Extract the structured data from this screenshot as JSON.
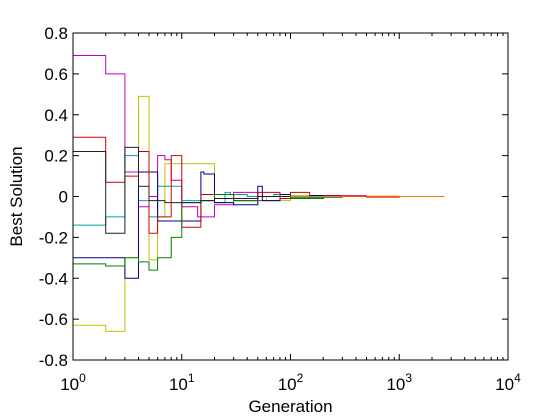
{
  "chart_data": {
    "type": "line",
    "xlabel": "Generation",
    "ylabel": "Best Solution",
    "xscale": "log",
    "xlim": [
      1,
      10000
    ],
    "ylim": [
      -0.8,
      0.8
    ],
    "grid": false,
    "legend": "none",
    "x_ticks": [
      {
        "value": 1,
        "base": "10",
        "exp": "0"
      },
      {
        "value": 10,
        "base": "10",
        "exp": "1"
      },
      {
        "value": 100,
        "base": "10",
        "exp": "2"
      },
      {
        "value": 1000,
        "base": "10",
        "exp": "3"
      },
      {
        "value": 10000,
        "base": "10",
        "exp": "4"
      }
    ],
    "y_ticks": [
      {
        "value": 0.8,
        "label": "0.8"
      },
      {
        "value": 0.6,
        "label": "0.6"
      },
      {
        "value": 0.4,
        "label": "0.4"
      },
      {
        "value": 0.2,
        "label": "0.2"
      },
      {
        "value": 0,
        "label": "0"
      },
      {
        "value": -0.2,
        "label": "-0.2"
      },
      {
        "value": -0.4,
        "label": "-0.4"
      },
      {
        "value": -0.6,
        "label": "-0.6"
      },
      {
        "value": -0.8,
        "label": "-0.8"
      }
    ],
    "series": [
      {
        "color": "#c000c0",
        "x": [
          1,
          2,
          3,
          4,
          5,
          6,
          7,
          8,
          10,
          14,
          20,
          30,
          50,
          80,
          100,
          200,
          500
        ],
        "y": [
          0.69,
          0.6,
          0.12,
          -0.05,
          0.0,
          0.2,
          0.18,
          0.08,
          -0.05,
          -0.1,
          -0.04,
          0.02,
          -0.02,
          0.01,
          -0.01,
          0.005,
          0.0
        ]
      },
      {
        "color": "#c0c000",
        "x": [
          1,
          2,
          3,
          4,
          5,
          6,
          7,
          10,
          15,
          20,
          30,
          50,
          60,
          100,
          200
        ],
        "y": [
          -0.63,
          -0.66,
          -0.3,
          0.49,
          -0.31,
          -0.1,
          0.16,
          0.16,
          0.16,
          -0.03,
          -0.02,
          0.0,
          -0.02,
          0.005,
          0.0
        ]
      },
      {
        "color": "#00a0a0",
        "x": [
          1,
          2,
          3,
          4,
          5,
          6,
          8,
          10,
          15,
          20,
          25,
          28,
          40,
          70,
          100,
          300
        ],
        "y": [
          -0.14,
          -0.1,
          0.2,
          -0.02,
          -0.1,
          0.05,
          0.05,
          -0.02,
          -0.02,
          -0.03,
          0.02,
          0.01,
          0.0,
          0.01,
          -0.005,
          0.0
        ]
      },
      {
        "color": "#00008b",
        "x": [
          1,
          2,
          3,
          4,
          5,
          6,
          10,
          15,
          16,
          20,
          30,
          50,
          55,
          80,
          100,
          150,
          200,
          500
        ],
        "y": [
          -0.3,
          -0.3,
          -0.4,
          0.12,
          0.12,
          -0.12,
          -0.12,
          0.12,
          0.11,
          -0.03,
          -0.04,
          0.05,
          -0.02,
          0.01,
          -0.01,
          0.005,
          0.0,
          0.0
        ]
      },
      {
        "color": "#d00000",
        "x": [
          1,
          2,
          3,
          4,
          5,
          6,
          8,
          10,
          15,
          20,
          30,
          50,
          80,
          100,
          150,
          200,
          300,
          500,
          1000,
          2600
        ],
        "y": [
          0.29,
          0.07,
          0.1,
          0.22,
          -0.18,
          -0.1,
          0.2,
          -0.15,
          0.01,
          0.01,
          -0.02,
          0.02,
          -0.01,
          0.02,
          -0.01,
          0.005,
          0.0,
          -0.003,
          0.0,
          0.0
        ]
      },
      {
        "color": "#008000",
        "x": [
          1,
          2,
          3,
          4,
          5,
          6,
          8,
          10,
          15,
          20,
          30,
          50,
          100,
          200
        ],
        "y": [
          -0.33,
          -0.34,
          -0.3,
          -0.32,
          -0.36,
          -0.3,
          -0.2,
          -0.03,
          -0.02,
          0.01,
          -0.02,
          0.0,
          -0.01,
          0.0
        ]
      },
      {
        "color": "#202020",
        "x": [
          1,
          2,
          3,
          4,
          5,
          7,
          10,
          15,
          20,
          50,
          100,
          200
        ],
        "y": [
          0.22,
          -0.18,
          0.24,
          0.05,
          -0.02,
          -0.03,
          -0.03,
          -0.02,
          -0.01,
          0.0,
          0.0,
          0.0
        ]
      },
      {
        "color": "#ff8000",
        "x": [
          100,
          300,
          1000,
          2600
        ],
        "y": [
          0.0,
          0.002,
          0.0,
          0.0
        ]
      }
    ]
  }
}
